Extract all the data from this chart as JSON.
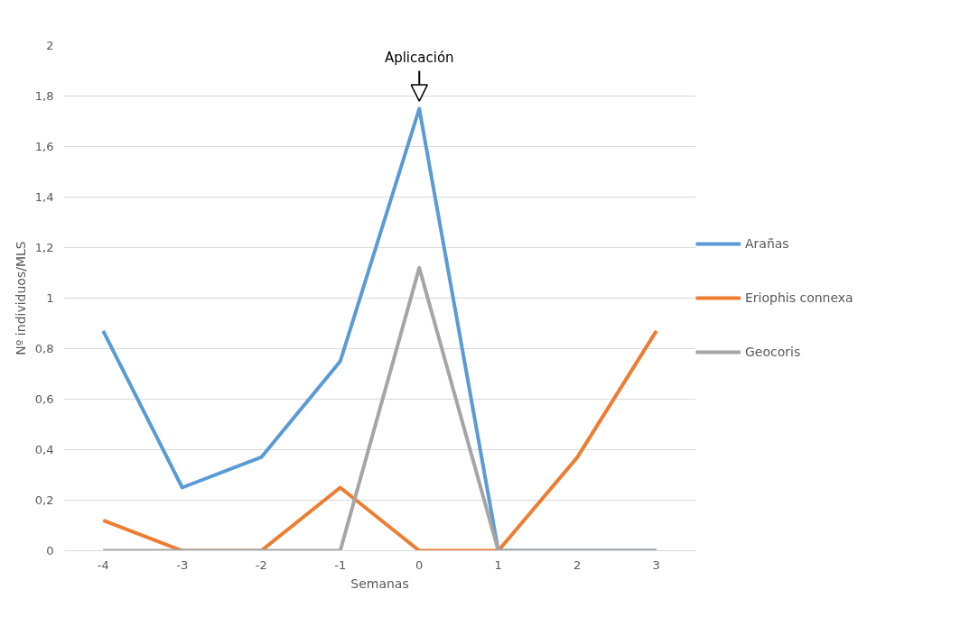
{
  "chart_data": {
    "type": "line",
    "xlabel": "Semanas",
    "ylabel": "Nº individuos/MLS",
    "categories": [
      "-4",
      "-3",
      "-2",
      "-1",
      "0",
      "1",
      "2",
      "3"
    ],
    "series": [
      {
        "name": "Arañas",
        "color": "#5b9bd5",
        "values": [
          0.87,
          0.25,
          0.37,
          0.75,
          1.75,
          0,
          0,
          0
        ]
      },
      {
        "name": "Eriophis connexa",
        "color": "#ed7d31",
        "values": [
          0.12,
          0,
          0,
          0.25,
          0,
          0,
          0.37,
          0.87
        ]
      },
      {
        "name": "Geocoris",
        "color": "#a5a5a5",
        "values": [
          0,
          0,
          0,
          0,
          1.12,
          0,
          0,
          0
        ]
      }
    ],
    "ylim": [
      0,
      2
    ],
    "yticks": [
      0,
      {
        "value": 0.2,
        "label": "0,2"
      },
      {
        "value": 0.4,
        "label": "0,4"
      },
      {
        "value": 0.6,
        "label": "0,6"
      },
      {
        "value": 0.8,
        "label": "0,8"
      },
      1,
      {
        "value": 1.2,
        "label": "1,2"
      },
      {
        "value": 1.4,
        "label": "1,4"
      },
      {
        "value": 1.6,
        "label": "1,6"
      },
      {
        "value": 1.8,
        "label": "1,8"
      },
      2
    ],
    "annotations": [
      {
        "text": "Aplicación",
        "x": "0",
        "y": 1.75
      }
    ],
    "grid": "y",
    "legend": "right",
    "line_style": "solid",
    "marker": "none"
  }
}
